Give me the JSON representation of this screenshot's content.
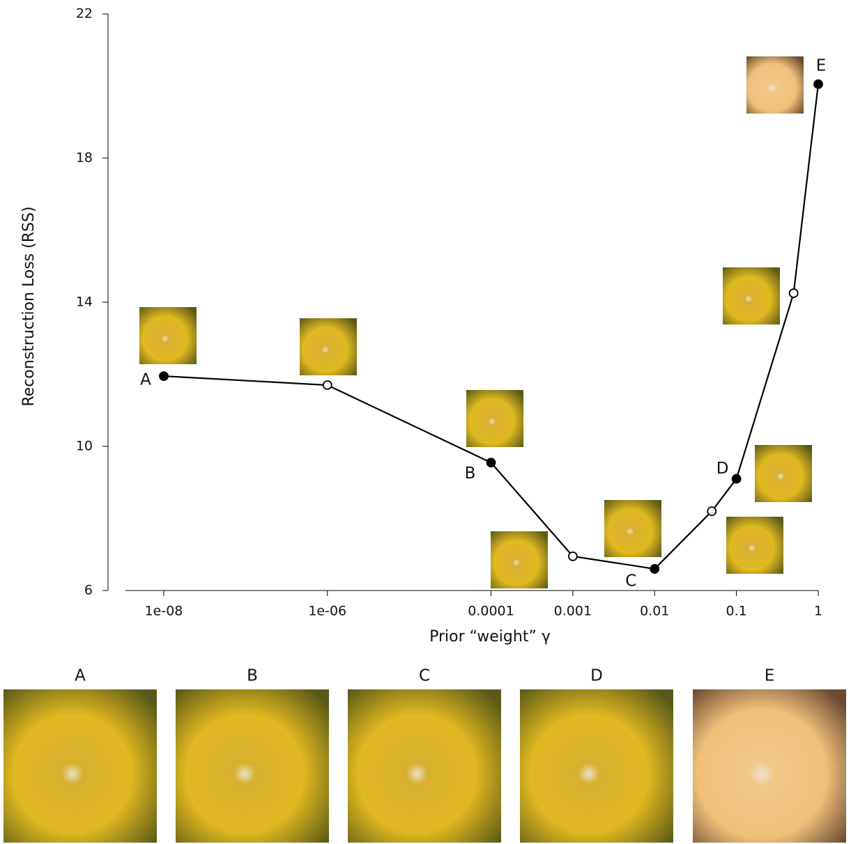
{
  "chart_data": {
    "type": "line",
    "xlabel": "Prior “weight” γ",
    "ylabel": "Reconstruction Loss (RSS)",
    "x": [
      1e-08,
      1e-06,
      0.0001,
      0.001,
      0.01,
      0.05,
      0.1,
      0.5,
      1
    ],
    "values": [
      11.95,
      11.7,
      9.55,
      6.95,
      6.6,
      8.2,
      9.1,
      14.25,
      20.05
    ],
    "point_labels": [
      "A",
      null,
      "B",
      null,
      "C",
      null,
      "D",
      null,
      "E"
    ],
    "color": "#000000",
    "xscale": "log",
    "xlim": [
      3.4e-09,
      1
    ],
    "xticks": [
      {
        "value": 1e-08,
        "label": "1e-08"
      },
      {
        "value": 1e-06,
        "label": "1e-06"
      },
      0.0001,
      0.001,
      0.01,
      0.1,
      1
    ],
    "ylim": [
      6,
      22
    ],
    "yticks": [
      6,
      10,
      14,
      18,
      22
    ],
    "panels": [
      "A",
      "B",
      "C",
      "D",
      "E"
    ]
  }
}
